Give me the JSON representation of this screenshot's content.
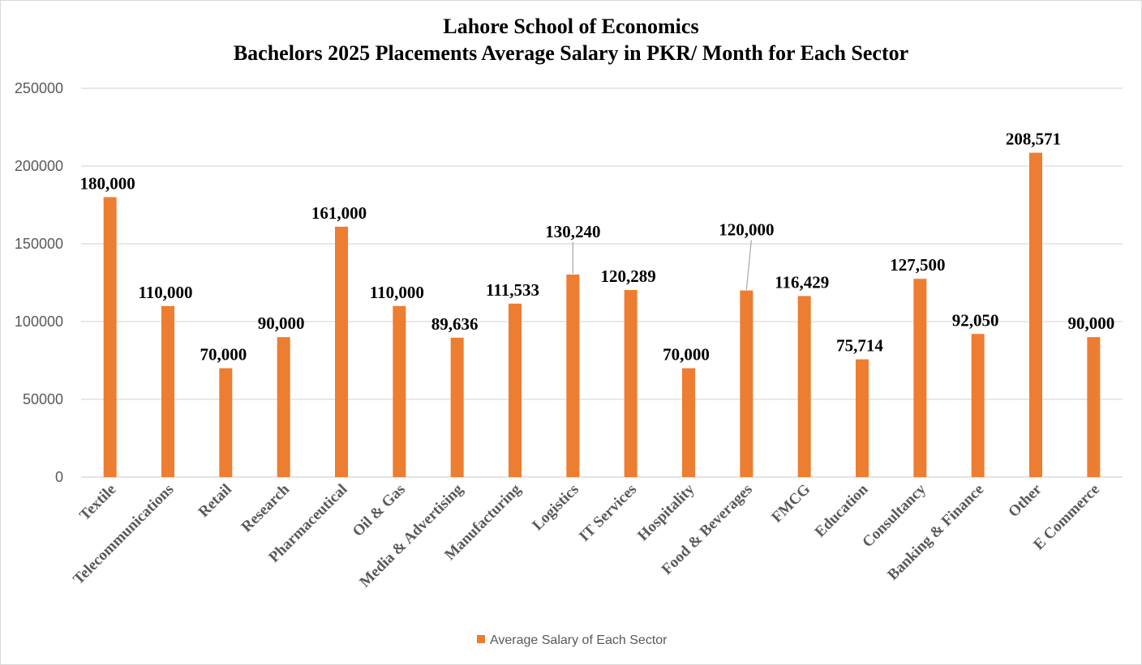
{
  "chart_data": {
    "type": "bar",
    "title": "Lahore School of Economics",
    "subtitle": "Bachelors 2025 Placements Average Salary in PKR/ Month for Each Sector",
    "categories": [
      "Textile",
      "Telecommunications",
      "Retail",
      "Research",
      "Pharmaceutical",
      "Oil & Gas",
      "Media & Advertising",
      "Manufacturing",
      "Logistics",
      "IT Services",
      "Hospitality",
      "Food & Beverages",
      "FMCG",
      "Education",
      "Consultancy",
      "Banking & Finance",
      "Other",
      "E Commerce"
    ],
    "series": [
      {
        "name": "Average Salary of Each Sector",
        "values": [
          180000,
          110000,
          70000,
          90000,
          161000,
          110000,
          89636,
          111533,
          130240,
          120289,
          70000,
          120000,
          116429,
          75714,
          127500,
          92050,
          208571,
          90000
        ],
        "data_labels": [
          "180,000",
          "110,000",
          "70,000",
          "90,000",
          "161,000",
          "110,000",
          "89,636",
          "111,533",
          "130,240",
          "120,289",
          "70,000",
          "120,000",
          "116,429",
          "75,714",
          "127,500",
          "92,050",
          "208,571",
          "90,000"
        ],
        "color": "#ed7d31"
      }
    ],
    "yticks": [
      "0",
      "50000",
      "100000",
      "150000",
      "200000",
      "250000"
    ],
    "ylim": [
      0,
      250000
    ],
    "xlabel": "",
    "ylabel": "",
    "grid": true,
    "legend_position": "bottom"
  },
  "colors": {
    "bar": "#ed7d31",
    "grid": "#d9d9d9",
    "axis_text": "#595959",
    "label_text": "#000000"
  }
}
